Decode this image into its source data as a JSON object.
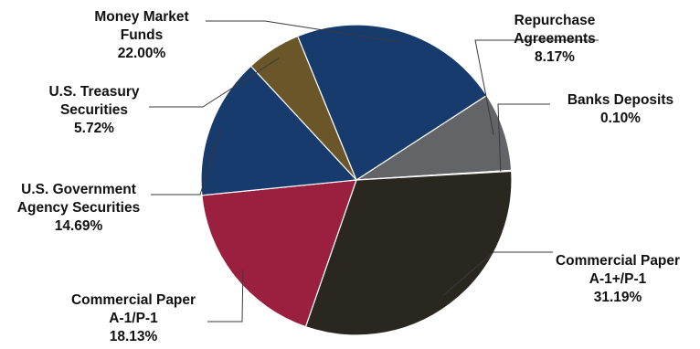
{
  "chart_data": {
    "type": "pie",
    "title": "",
    "start_angle_deg": 57,
    "slices": [
      {
        "label_lines": [
          "Repurchase",
          "Agreements"
        ],
        "value_label": "8.17%",
        "value": 8.17,
        "color": "#636467"
      },
      {
        "label_lines": [
          "Banks Deposits"
        ],
        "value_label": "0.10%",
        "value": 0.1,
        "color": "#e9b08a"
      },
      {
        "label_lines": [
          "Commercial Paper",
          "A-1+/P-1"
        ],
        "value_label": "31.19%",
        "value": 31.19,
        "color": "#29271f"
      },
      {
        "label_lines": [
          "Commercial Paper",
          "A-1/P-1"
        ],
        "value_label": "18.13%",
        "value": 18.13,
        "color": "#9b2040"
      },
      {
        "label_lines": [
          "U.S. Government",
          "Agency Securities"
        ],
        "value_label": "14.69%",
        "value": 14.69,
        "color": "#163b6c"
      },
      {
        "label_lines": [
          "U.S. Treasury",
          "Securities"
        ],
        "value_label": "5.72%",
        "value": 5.72,
        "color": "#6a5629"
      },
      {
        "label_lines": [
          "Money Market",
          "Funds"
        ],
        "value_label": "22.00%",
        "value": 22.0,
        "color": "#163b6c"
      }
    ]
  }
}
